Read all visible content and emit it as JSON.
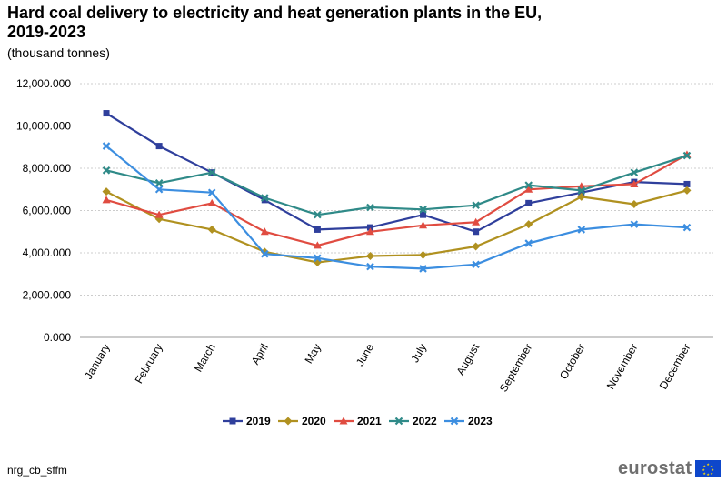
{
  "chart_data": {
    "type": "line",
    "title_line1": "Hard coal delivery to electricity and heat generation plants in the EU,",
    "title_line2": "2019-2023",
    "subtitle": "(thousand  tonnes)",
    "categories": [
      "January",
      "February",
      "March",
      "April",
      "May",
      "June",
      "July",
      "August",
      "September",
      "October",
      "November",
      "December"
    ],
    "ylim": [
      0,
      12000
    ],
    "yticks": [
      "0.000",
      "2,000.000",
      "4,000.000",
      "6,000.000",
      "8,000.000",
      "10,000.000",
      "12,000.000"
    ],
    "ytick_values": [
      0,
      2000,
      4000,
      6000,
      8000,
      10000,
      12000
    ],
    "grid": true,
    "legend_position": "bottom",
    "series": [
      {
        "name": "2019",
        "color": "#2f3f9c",
        "marker": "square",
        "values": [
          10600,
          9050,
          7800,
          6500,
          5100,
          5200,
          5800,
          5000,
          6350,
          6850,
          7350,
          7250
        ]
      },
      {
        "name": "2020",
        "color": "#b09120",
        "marker": "diamond",
        "values": [
          6900,
          5600,
          5100,
          4050,
          3550,
          3850,
          3900,
          4300,
          5350,
          6650,
          6300,
          6950
        ]
      },
      {
        "name": "2021",
        "color": "#e04c41",
        "marker": "triangle",
        "values": [
          6500,
          5800,
          6350,
          5000,
          4350,
          5000,
          5300,
          5450,
          7000,
          7150,
          7250,
          8650
        ]
      },
      {
        "name": "2022",
        "color": "#2f8a88",
        "marker": "x",
        "values": [
          7900,
          7300,
          7800,
          6600,
          5800,
          6150,
          6050,
          6250,
          7200,
          6950,
          7800,
          8600
        ]
      },
      {
        "name": "2023",
        "color": "#3c8ee0",
        "marker": "x",
        "values": [
          9050,
          7000,
          6850,
          3950,
          3750,
          3350,
          3250,
          3450,
          4450,
          5100,
          5350,
          5200
        ]
      }
    ]
  },
  "footer": {
    "source": "nrg_cb_sffm",
    "logo": "eurostat"
  }
}
